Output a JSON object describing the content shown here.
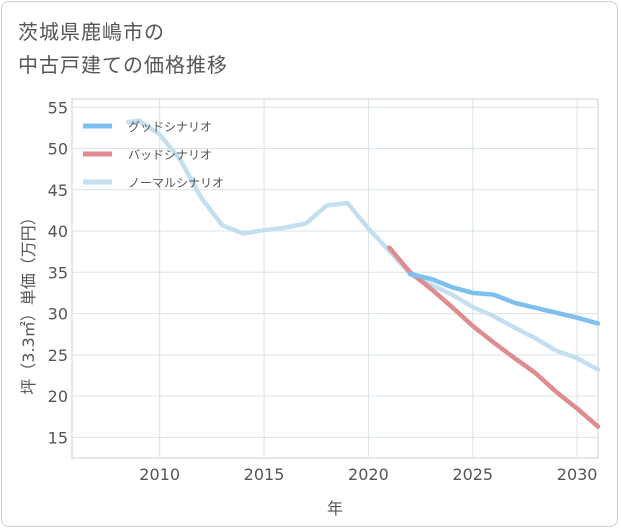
{
  "title_lines": [
    "茨城県鹿嶋市の",
    "中古戸建ての価格推移"
  ],
  "chart_data": {
    "type": "line",
    "xlabel": "年",
    "ylabel": "坪（3.3㎡）単価（万円）",
    "xlim": [
      2005.8,
      2031
    ],
    "ylim": [
      12.5,
      56
    ],
    "xticks": [
      2010,
      2015,
      2020,
      2025,
      2030
    ],
    "yticks": [
      15,
      20,
      25,
      30,
      35,
      40,
      45,
      50,
      55
    ],
    "grid": true,
    "legend_position": "top-left",
    "series": [
      {
        "name": "グッドシナリオ",
        "color": "#7dbfee",
        "x": [
          2022,
          2023,
          2024,
          2025,
          2026,
          2027,
          2028,
          2029,
          2030,
          2031
        ],
        "y": [
          34.8,
          34.2,
          33.2,
          32.5,
          32.3,
          31.3,
          30.7,
          30.1,
          29.5,
          28.8
        ]
      },
      {
        "name": "バッドシナリオ",
        "color": "#de8c8e",
        "x": [
          2021,
          2022,
          2023,
          2024,
          2025,
          2026,
          2027,
          2028,
          2029,
          2030,
          2031
        ],
        "y": [
          38.0,
          35.0,
          33.0,
          30.8,
          28.5,
          26.5,
          24.6,
          22.8,
          20.5,
          18.5,
          16.3
        ]
      },
      {
        "name": "ノーマルシナリオ",
        "color": "#c3dff0",
        "x": [
          2008.5,
          2009,
          2010,
          2011,
          2012,
          2013,
          2014,
          2015,
          2016,
          2017,
          2018,
          2019,
          2020,
          2021,
          2022,
          2023,
          2024,
          2025,
          2026,
          2027,
          2028,
          2029,
          2030,
          2031
        ],
        "y": [
          53.2,
          53.4,
          51.7,
          48.6,
          44.0,
          40.7,
          39.7,
          40.1,
          40.4,
          40.9,
          43.1,
          43.4,
          40.3,
          37.6,
          34.8,
          33.5,
          32.3,
          30.8,
          29.7,
          28.3,
          27.0,
          25.5,
          24.6,
          23.2
        ]
      }
    ]
  }
}
